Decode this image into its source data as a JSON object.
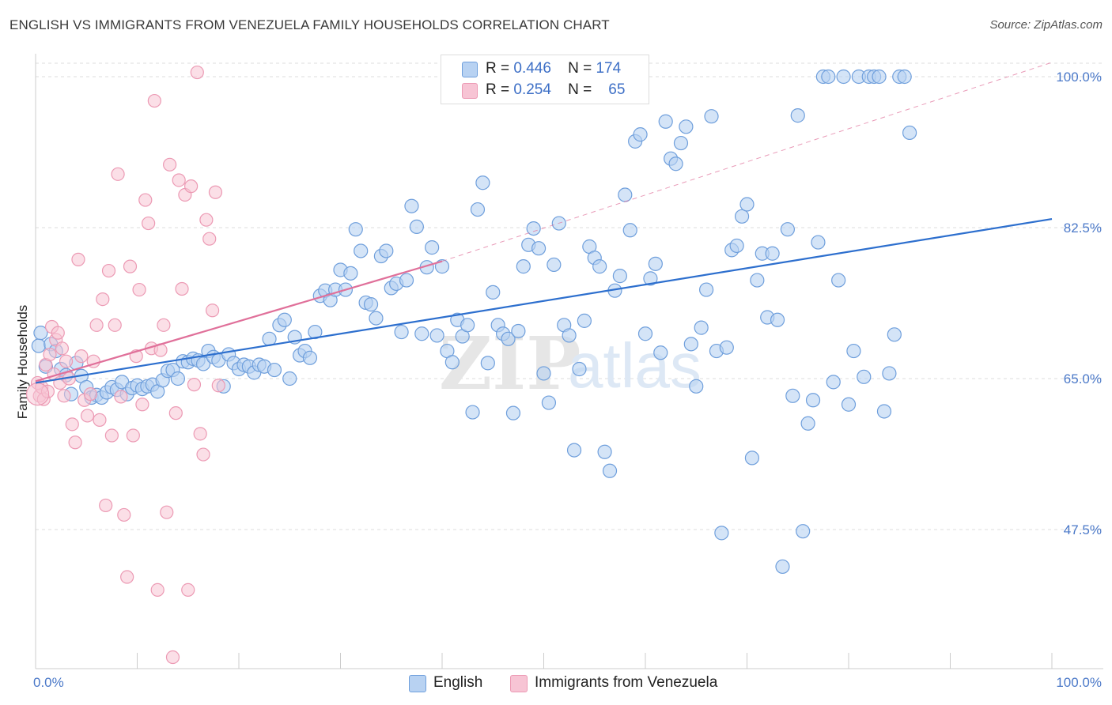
{
  "header": {
    "title": "ENGLISH VS IMMIGRANTS FROM VENEZUELA FAMILY HOUSEHOLDS CORRELATION CHART",
    "source": "Source: ZipAtlas.com"
  },
  "legend": {
    "rows": [
      {
        "r_label": "R =",
        "r_value": "0.446",
        "n_label": "N =",
        "n_value": "174"
      },
      {
        "r_label": "R =",
        "r_value": "0.254",
        "n_label": "N =",
        "n_value": "65"
      }
    ]
  },
  "bottom_legend": {
    "english": "English",
    "venezuela": "Immigrants from Venezuela"
  },
  "watermark": {
    "zip": "ZIP",
    "atlas": "atlas"
  },
  "colors": {
    "english_fill": "#b8d2f2",
    "english_stroke": "#6f9fdc",
    "english_line": "#2d6fce",
    "venezuela_fill": "#f7c4d4",
    "venezuela_stroke": "#ec9ab4",
    "venezuela_line": "#e0709a",
    "tick_label": "#4a78c8",
    "grid": "#dddddd"
  },
  "chart_data": {
    "type": "scatter",
    "title": "ENGLISH VS IMMIGRANTS FROM VENEZUELA FAMILY HOUSEHOLDS CORRELATION CHART",
    "xlabel": "",
    "ylabel": "Family Households",
    "xlim": [
      0,
      100
    ],
    "ylim": [
      33,
      101.5
    ],
    "x_tick_labels": [
      "0.0%",
      "100.0%"
    ],
    "y_ticks": [
      47.5,
      65.0,
      82.5,
      100.0
    ],
    "y_tick_labels": [
      "47.5%",
      "65.0%",
      "82.5%",
      "100.0%"
    ],
    "grid": true,
    "legend_position": "top-center",
    "series": [
      {
        "name": "English",
        "R": 0.446,
        "N": 174,
        "trend": {
          "x": [
            0,
            100
          ],
          "y": [
            64.5,
            83.5
          ],
          "dashed_extension": false
        },
        "points": [
          [
            0.3,
            68.8
          ],
          [
            0.5,
            70.3
          ],
          [
            1,
            66.4
          ],
          [
            1.5,
            69
          ],
          [
            2,
            68.2
          ],
          [
            2.5,
            66.1
          ],
          [
            3,
            65.4
          ],
          [
            3.5,
            63.2
          ],
          [
            4,
            66.8
          ],
          [
            4.5,
            65.3
          ],
          [
            5,
            64
          ],
          [
            5.5,
            62.8
          ],
          [
            6,
            63.1
          ],
          [
            6.5,
            62.8
          ],
          [
            7,
            63.4
          ],
          [
            7.5,
            64
          ],
          [
            8,
            63.7
          ],
          [
            8.5,
            64.6
          ],
          [
            9,
            63.2
          ],
          [
            9.5,
            63.9
          ],
          [
            10,
            64.2
          ],
          [
            10.5,
            63.8
          ],
          [
            11,
            64.1
          ],
          [
            11.5,
            64.3
          ],
          [
            12,
            63.5
          ],
          [
            12.5,
            64.8
          ],
          [
            13,
            65.9
          ],
          [
            13.5,
            66
          ],
          [
            14,
            65
          ],
          [
            14.5,
            67
          ],
          [
            15,
            66.9
          ],
          [
            15.5,
            67.3
          ],
          [
            16,
            67.1
          ],
          [
            16.5,
            66.7
          ],
          [
            17,
            68.2
          ],
          [
            17.5,
            67.5
          ],
          [
            18,
            67.1
          ],
          [
            18.5,
            64.1
          ],
          [
            19,
            67.8
          ],
          [
            19.5,
            66.8
          ],
          [
            20,
            66.1
          ],
          [
            20.5,
            66.6
          ],
          [
            21,
            66.4
          ],
          [
            21.5,
            65.7
          ],
          [
            22,
            66.6
          ],
          [
            22.5,
            66.4
          ],
          [
            23,
            69.6
          ],
          [
            23.5,
            66
          ],
          [
            24,
            71.2
          ],
          [
            24.5,
            71.8
          ],
          [
            25,
            65
          ],
          [
            25.5,
            69.8
          ],
          [
            26,
            67.7
          ],
          [
            26.5,
            68.2
          ],
          [
            27,
            67.4
          ],
          [
            27.5,
            70.4
          ],
          [
            28,
            74.6
          ],
          [
            28.5,
            75.2
          ],
          [
            29,
            74.1
          ],
          [
            29.5,
            75.3
          ],
          [
            30,
            77.6
          ],
          [
            30.5,
            75.3
          ],
          [
            31,
            77.2
          ],
          [
            31.5,
            82.3
          ],
          [
            32,
            79.8
          ],
          [
            32.5,
            73.8
          ],
          [
            33,
            73.6
          ],
          [
            33.5,
            72
          ],
          [
            34,
            79.2
          ],
          [
            34.5,
            79.8
          ],
          [
            35,
            75.5
          ],
          [
            35.5,
            76
          ],
          [
            36,
            70.4
          ],
          [
            36.5,
            76.4
          ],
          [
            37,
            85
          ],
          [
            37.5,
            82.6
          ],
          [
            38,
            70.2
          ],
          [
            38.5,
            77.9
          ],
          [
            39,
            80.2
          ],
          [
            39.5,
            70
          ],
          [
            40,
            78
          ],
          [
            40.5,
            68.2
          ],
          [
            41,
            66.9
          ],
          [
            41.5,
            71.8
          ],
          [
            42,
            69.9
          ],
          [
            42.5,
            71.2
          ],
          [
            43,
            61.1
          ],
          [
            43.5,
            84.6
          ],
          [
            44,
            87.7
          ],
          [
            44.5,
            66.8
          ],
          [
            45,
            75
          ],
          [
            45.5,
            71.2
          ],
          [
            46,
            70.2
          ],
          [
            46.5,
            69.6
          ],
          [
            47,
            61
          ],
          [
            47.5,
            70.5
          ],
          [
            48,
            78
          ],
          [
            48.5,
            80.5
          ],
          [
            49,
            82.4
          ],
          [
            49.5,
            80.1
          ],
          [
            50,
            65.6
          ],
          [
            50.5,
            62.2
          ],
          [
            51,
            78.2
          ],
          [
            51.5,
            83
          ],
          [
            52,
            71.2
          ],
          [
            52.5,
            70
          ],
          [
            53,
            56.7
          ],
          [
            53.5,
            66.1
          ],
          [
            54,
            71.7
          ],
          [
            54.5,
            80.3
          ],
          [
            55,
            79
          ],
          [
            55.5,
            78
          ],
          [
            56,
            56.5
          ],
          [
            56.5,
            54.3
          ],
          [
            57,
            75.2
          ],
          [
            57.5,
            76.9
          ],
          [
            58,
            86.3
          ],
          [
            58.5,
            82.2
          ],
          [
            59,
            92.5
          ],
          [
            59.5,
            93.3
          ],
          [
            60,
            70.2
          ],
          [
            60.5,
            76.6
          ],
          [
            61,
            78.3
          ],
          [
            61.5,
            68
          ],
          [
            62,
            94.8
          ],
          [
            62.5,
            90.5
          ],
          [
            63,
            89.9
          ],
          [
            63.5,
            92.3
          ],
          [
            64,
            94.2
          ],
          [
            64.5,
            69
          ],
          [
            65,
            64.1
          ],
          [
            65.5,
            70.9
          ],
          [
            66,
            75.3
          ],
          [
            66.5,
            95.4
          ],
          [
            67,
            68.2
          ],
          [
            67.5,
            47.1
          ],
          [
            68,
            68.6
          ],
          [
            68.5,
            79.9
          ],
          [
            69,
            80.4
          ],
          [
            69.5,
            83.8
          ],
          [
            70,
            85.2
          ],
          [
            70.5,
            55.8
          ],
          [
            71,
            76.4
          ],
          [
            71.5,
            79.5
          ],
          [
            72,
            72.1
          ],
          [
            72.5,
            79.5
          ],
          [
            73,
            71.8
          ],
          [
            73.5,
            43.2
          ],
          [
            74,
            82.3
          ],
          [
            74.5,
            63
          ],
          [
            75,
            95.5
          ],
          [
            75.5,
            47.3
          ],
          [
            76,
            59.8
          ],
          [
            76.5,
            62.5
          ],
          [
            77,
            80.8
          ],
          [
            77.5,
            100
          ],
          [
            78,
            100
          ],
          [
            78.5,
            64.6
          ],
          [
            79,
            76.4
          ],
          [
            79.5,
            100
          ],
          [
            80,
            62
          ],
          [
            80.5,
            68.2
          ],
          [
            81,
            100
          ],
          [
            81.5,
            65.2
          ],
          [
            82,
            100
          ],
          [
            82.5,
            100
          ],
          [
            83,
            100
          ],
          [
            83.5,
            61.2
          ],
          [
            84,
            65.6
          ],
          [
            84.5,
            70.1
          ],
          [
            85,
            100
          ],
          [
            85.5,
            100
          ],
          [
            86,
            93.5
          ]
        ]
      },
      {
        "name": "Immigrants from Venezuela",
        "R": 0.254,
        "N": 65,
        "trend": {
          "x": [
            0,
            40
          ],
          "y": [
            64.7,
            78.6
          ],
          "dashed_extension_to": [
            100,
            100
          ]
        },
        "points": [
          [
            0.2,
            64.5
          ],
          [
            0.4,
            63
          ],
          [
            0.6,
            64
          ],
          [
            0.8,
            62.6
          ],
          [
            1,
            66.6
          ],
          [
            1.2,
            63.5
          ],
          [
            1.4,
            67.8
          ],
          [
            1.6,
            71
          ],
          [
            1.8,
            65.5
          ],
          [
            2,
            69.5
          ],
          [
            2.2,
            70.3
          ],
          [
            2.4,
            64.5
          ],
          [
            2.6,
            68.5
          ],
          [
            2.8,
            63
          ],
          [
            3,
            67
          ],
          [
            3.3,
            65
          ],
          [
            3.6,
            59.7
          ],
          [
            3.9,
            57.6
          ],
          [
            4.2,
            78.8
          ],
          [
            4.5,
            67.6
          ],
          [
            4.8,
            62.5
          ],
          [
            5.1,
            60.7
          ],
          [
            5.4,
            63.2
          ],
          [
            5.7,
            67
          ],
          [
            6,
            71.2
          ],
          [
            6.3,
            60.2
          ],
          [
            6.6,
            74.2
          ],
          [
            6.9,
            50.3
          ],
          [
            7.2,
            77.5
          ],
          [
            7.5,
            58.4
          ],
          [
            7.8,
            71.2
          ],
          [
            8.1,
            88.7
          ],
          [
            8.4,
            62.9
          ],
          [
            8.7,
            49.2
          ],
          [
            9,
            42
          ],
          [
            9.3,
            78
          ],
          [
            9.6,
            58.4
          ],
          [
            9.9,
            67.6
          ],
          [
            10.2,
            75.3
          ],
          [
            10.5,
            62
          ],
          [
            10.8,
            85.7
          ],
          [
            11.1,
            83
          ],
          [
            11.4,
            68.5
          ],
          [
            11.7,
            97.2
          ],
          [
            12,
            40.5
          ],
          [
            12.3,
            68.3
          ],
          [
            12.6,
            71.2
          ],
          [
            12.9,
            49.5
          ],
          [
            13.2,
            89.8
          ],
          [
            13.5,
            32.7
          ],
          [
            13.8,
            61
          ],
          [
            14.1,
            88
          ],
          [
            14.4,
            75.4
          ],
          [
            14.7,
            86.3
          ],
          [
            15,
            40.5
          ],
          [
            15.3,
            87.3
          ],
          [
            15.6,
            64.3
          ],
          [
            15.9,
            100.5
          ],
          [
            16.2,
            58.6
          ],
          [
            16.5,
            56.2
          ],
          [
            16.8,
            83.4
          ],
          [
            17.1,
            81.2
          ],
          [
            17.4,
            72.9
          ],
          [
            17.7,
            86.6
          ],
          [
            18,
            64.2
          ]
        ]
      }
    ]
  }
}
